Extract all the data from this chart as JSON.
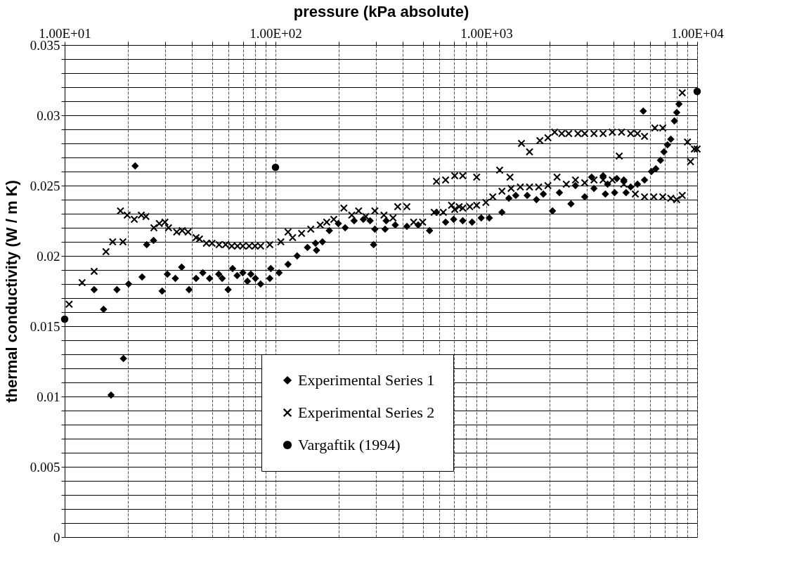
{
  "chart_data": {
    "type": "scatter",
    "xlabel": "pressure (kPa absolute)",
    "ylabel": "thermal conductivity (W / m K)",
    "log": "x",
    "grid": true,
    "legend": "bottom",
    "xlim": [
      10,
      10000
    ],
    "xticks": [
      {
        "value": 10,
        "label": "1.00E+01"
      },
      {
        "value": 20,
        "label": null
      },
      {
        "value": 30,
        "label": null
      },
      {
        "value": 40,
        "label": null
      },
      {
        "value": 50,
        "label": null
      },
      {
        "value": 60,
        "label": null
      },
      {
        "value": 70,
        "label": null
      },
      {
        "value": 80,
        "label": null
      },
      {
        "value": 90,
        "label": null
      },
      {
        "value": 100,
        "label": "1.00E+02"
      },
      {
        "value": 200,
        "label": null
      },
      {
        "value": 300,
        "label": null
      },
      {
        "value": 400,
        "label": null
      },
      {
        "value": 500,
        "label": null
      },
      {
        "value": 600,
        "label": null
      },
      {
        "value": 700,
        "label": null
      },
      {
        "value": 800,
        "label": null
      },
      {
        "value": 900,
        "label": null
      },
      {
        "value": 1000,
        "label": "1.00E+03"
      },
      {
        "value": 2000,
        "label": null
      },
      {
        "value": 3000,
        "label": null
      },
      {
        "value": 4000,
        "label": null
      },
      {
        "value": 5000,
        "label": null
      },
      {
        "value": 6000,
        "label": null
      },
      {
        "value": 7000,
        "label": null
      },
      {
        "value": 8000,
        "label": null
      },
      {
        "value": 9000,
        "label": null
      },
      {
        "value": 10000,
        "label": "1.00E+04"
      }
    ],
    "ylim": [
      0,
      0.035
    ],
    "yticks": [
      0,
      {
        "value": 0.001,
        "label": null
      },
      {
        "value": 0.002,
        "label": null
      },
      {
        "value": 0.003,
        "label": null
      },
      {
        "value": 0.004,
        "label": null
      },
      0.005,
      {
        "value": 0.006,
        "label": null
      },
      {
        "value": 0.007,
        "label": null
      },
      {
        "value": 0.008,
        "label": null
      },
      {
        "value": 0.009,
        "label": null
      },
      0.01,
      {
        "value": 0.011,
        "label": null
      },
      {
        "value": 0.012,
        "label": null
      },
      {
        "value": 0.013,
        "label": null
      },
      {
        "value": 0.014,
        "label": null
      },
      0.015,
      {
        "value": 0.016,
        "label": null
      },
      {
        "value": 0.017,
        "label": null
      },
      {
        "value": 0.018,
        "label": null
      },
      {
        "value": 0.019,
        "label": null
      },
      0.02,
      {
        "value": 0.021,
        "label": null
      },
      {
        "value": 0.022,
        "label": null
      },
      {
        "value": 0.023,
        "label": null
      },
      {
        "value": 0.024,
        "label": null
      },
      0.025,
      {
        "value": 0.026,
        "label": null
      },
      {
        "value": 0.027,
        "label": null
      },
      {
        "value": 0.028,
        "label": null
      },
      {
        "value": 0.029,
        "label": null
      },
      0.03,
      {
        "value": 0.031,
        "label": null
      },
      {
        "value": 0.032,
        "label": null
      },
      {
        "value": 0.033,
        "label": null
      },
      {
        "value": 0.034,
        "label": null
      },
      0.035
    ],
    "series": [
      {
        "name": "Experimental Series 1",
        "color": "#000000",
        "marker": "diamond",
        "x": [
          13.8,
          15.3,
          16.6,
          17.7,
          19,
          20.1,
          21.6,
          23.3,
          24.5,
          26.4,
          29,
          30.7,
          33.5,
          35.9,
          38.9,
          42,
          45.2,
          48.7,
          53.8,
          55.9,
          59.6,
          62.6,
          65.8,
          70,
          73.6,
          76.4,
          80.3,
          85,
          94,
          95,
          104,
          114.7,
          126.7,
          141.8,
          154.8,
          156.5,
          167,
          180,
          198.6,
          214,
          236,
          261,
          281,
          292,
          296,
          331,
          335,
          370,
          420,
          475,
          538,
          580,
          641,
          700,
          773,
          856,
          946,
          1033,
          1186,
          1279,
          1379,
          1563,
          1729,
          1864,
          2060,
          2222,
          2520,
          2647,
          2929,
          3160,
          3240,
          3580,
          3670,
          3760,
          4060,
          4160,
          4490,
          4600,
          4840,
          5210,
          5550,
          5630,
          6070,
          6370,
          6700,
          6960,
          7230,
          7500,
          7800,
          8000,
          8200
        ],
        "values": [
          0.0176,
          0.0162,
          0.0101,
          0.0176,
          0.0127,
          0.018,
          0.0264,
          0.0185,
          0.0208,
          0.0211,
          0.0175,
          0.0187,
          0.0184,
          0.0192,
          0.0176,
          0.0184,
          0.0188,
          0.0184,
          0.0187,
          0.0184,
          0.0176,
          0.0191,
          0.0186,
          0.0188,
          0.0182,
          0.0187,
          0.0184,
          0.018,
          0.0184,
          0.0191,
          0.0188,
          0.0194,
          0.02,
          0.0206,
          0.0209,
          0.0204,
          0.021,
          0.0218,
          0.0223,
          0.022,
          0.0225,
          0.0226,
          0.0225,
          0.0208,
          0.0219,
          0.0219,
          0.0225,
          0.0222,
          0.0221,
          0.0222,
          0.0218,
          0.0231,
          0.0224,
          0.0226,
          0.0225,
          0.0224,
          0.0227,
          0.0227,
          0.0231,
          0.0241,
          0.0243,
          0.0243,
          0.024,
          0.0244,
          0.0232,
          0.0245,
          0.0237,
          0.025,
          0.0242,
          0.0256,
          0.0248,
          0.0257,
          0.0244,
          0.0251,
          0.0245,
          0.0255,
          0.0254,
          0.0245,
          0.0249,
          0.0251,
          0.0303,
          0.0254,
          0.026,
          0.0262,
          0.0268,
          0.0274,
          0.0279,
          0.0283,
          0.0296,
          0.0302,
          0.0308
        ]
      },
      {
        "name": "Experimental Series 2",
        "color": "#000000",
        "marker": "cross",
        "x": [
          10.5,
          12.1,
          13.8,
          15.7,
          16.9,
          18.4,
          18.9,
          19.8,
          21.4,
          23.1,
          24.3,
          26.5,
          28.1,
          29.9,
          31.1,
          34,
          36.1,
          38.5,
          42,
          43.6,
          47,
          50,
          54,
          58,
          62,
          66,
          70,
          75,
          80,
          85,
          94,
          106,
          114.7,
          120.6,
          133,
          147,
          163,
          175,
          189,
          211,
          230,
          248,
          268,
          296,
          327,
          361,
          380,
          420,
          452,
          499,
          566,
          580,
          625,
          641,
          684,
          708,
          708,
          743,
          773,
          773,
          835,
          900,
          900,
          995,
          1073,
          1157,
          1186,
          1295,
          1311,
          1450,
          1468,
          1603,
          1603,
          1772,
          1795,
          1960,
          1960,
          2110,
          2165,
          2280,
          2395,
          2460,
          2647,
          2720,
          2929,
          2930,
          3240,
          3240,
          3580,
          3580,
          3960,
          3960,
          4270,
          4380,
          4490,
          4840,
          5090,
          5210,
          5630,
          5630,
          6230,
          6300,
          6870,
          6870,
          7500,
          8000,
          8500,
          8500,
          9000,
          9300,
          9700,
          10000
        ],
        "values": [
          0.01656,
          0.0181,
          0.0189,
          0.0203,
          0.021,
          0.0232,
          0.021,
          0.0229,
          0.0226,
          0.0229,
          0.0228,
          0.022,
          0.0223,
          0.0224,
          0.022,
          0.0217,
          0.0218,
          0.0217,
          0.0213,
          0.0212,
          0.0209,
          0.0209,
          0.0208,
          0.0208,
          0.0207,
          0.0207,
          0.0207,
          0.0207,
          0.0207,
          0.0207,
          0.0208,
          0.021,
          0.0217,
          0.0213,
          0.0216,
          0.0219,
          0.0222,
          0.0224,
          0.0226,
          0.0234,
          0.0229,
          0.0232,
          0.0228,
          0.0232,
          0.0229,
          0.0227,
          0.0235,
          0.0235,
          0.0224,
          0.0224,
          0.0231,
          0.0253,
          0.0231,
          0.0254,
          0.0236,
          0.0257,
          0.0233,
          0.0235,
          0.0257,
          0.0234,
          0.0235,
          0.0256,
          0.0236,
          0.0238,
          0.0242,
          0.0261,
          0.0246,
          0.0256,
          0.0248,
          0.0249,
          0.028,
          0.0274,
          0.0249,
          0.0249,
          0.0282,
          0.0284,
          0.025,
          0.0288,
          0.0256,
          0.0287,
          0.0251,
          0.0287,
          0.0254,
          0.0287,
          0.0252,
          0.0287,
          0.0287,
          0.0254,
          0.0287,
          0.0254,
          0.0288,
          0.0254,
          0.0271,
          0.0288,
          0.0251,
          0.0287,
          0.0244,
          0.0287,
          0.0285,
          0.0242,
          0.0242,
          0.0291,
          0.0291,
          0.0242,
          0.0241,
          0.024,
          0.0243,
          0.0316,
          0.0281,
          0.0267,
          0.0276,
          0.0276
        ]
      },
      {
        "name": "Vargaftik (1994)",
        "color": "#000000",
        "marker": "circle",
        "x": [
          10,
          100,
          10000
        ],
        "values": [
          0.0155,
          0.0263,
          0.0317
        ]
      }
    ]
  }
}
